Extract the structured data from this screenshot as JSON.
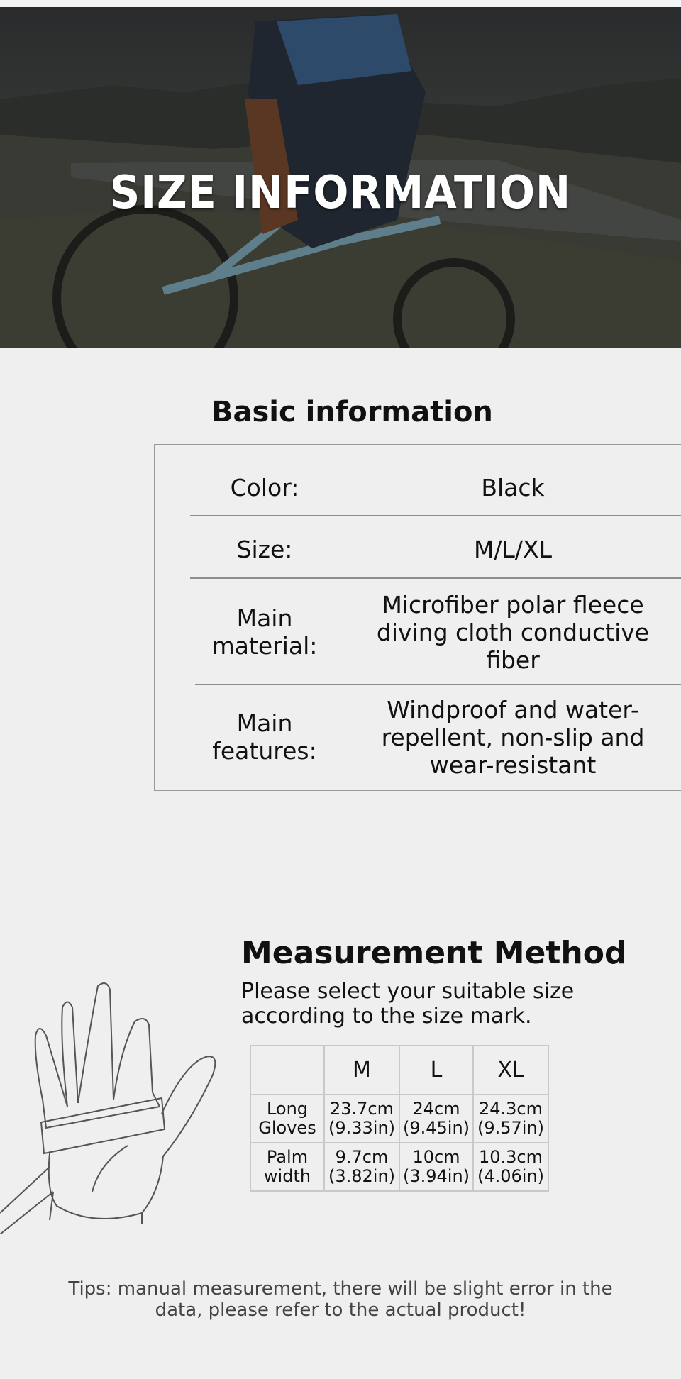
{
  "banner": {
    "title": "SIZE INFORMATION"
  },
  "basic": {
    "title": "Basic information",
    "rows": [
      {
        "label": "Color:",
        "value": "Black"
      },
      {
        "label": "Size:",
        "value": "M/L/XL"
      },
      {
        "label": "Main material:",
        "value": "Microfiber polar fleece diving cloth conductive fiber"
      },
      {
        "label": "Main features:",
        "value": "Windproof and water-repellent, non-slip and wear-resistant"
      }
    ]
  },
  "measurement": {
    "title": "Measurement Method",
    "subtitle": "Please select your suitable size according to the size mark.",
    "table": {
      "headers": [
        "",
        "M",
        "L",
        "XL"
      ],
      "rows": [
        {
          "label": "Long Gloves",
          "cells": [
            "23.7cm (9.33in)",
            "24cm (9.45in)",
            "24.3cm (9.57in)"
          ]
        },
        {
          "label": "Palm width",
          "cells": [
            "9.7cm (3.82in)",
            "10cm (3.94in)",
            "10.3cm (4.06in)"
          ]
        }
      ]
    }
  },
  "tips": "Tips: manual measurement, there will be slight error in the data, please refer to the actual product!",
  "colors": {
    "background": "#efefef",
    "banner_text": "#ffffff",
    "divider": "#8d8d8d"
  }
}
